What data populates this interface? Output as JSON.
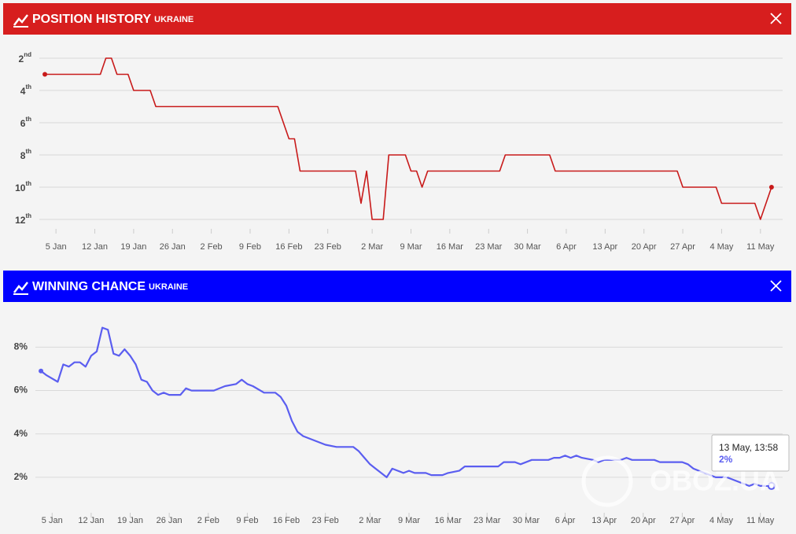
{
  "chart_data": [
    {
      "type": "line",
      "title": "POSITION HISTORY",
      "subtitle": "UKRAINE",
      "header_color": "#d71e1e",
      "color": "#c81a1a",
      "x": [
        "3 Jan",
        "13 Jan",
        "14 Jan",
        "15 Jan",
        "16 Jan",
        "18 Jan",
        "19 Jan",
        "22 Jan",
        "23 Jan",
        "14 Feb",
        "16 Feb",
        "17 Feb",
        "18 Feb",
        "28 Feb",
        "29 Feb",
        "1 Mar",
        "2 Mar",
        "4 Mar",
        "5 Mar",
        "8 Mar",
        "9 Mar",
        "10 Mar",
        "11 Mar",
        "12 Mar",
        "25 Mar",
        "26 Mar",
        "3 Apr",
        "4 Apr",
        "26 Apr",
        "27 Apr",
        "3 May",
        "4 May",
        "10 May",
        "11 May",
        "13 May"
      ],
      "values": [
        3,
        3,
        2,
        2,
        3,
        3,
        4,
        4,
        5,
        5,
        7,
        7,
        9,
        9,
        11,
        9,
        12,
        12,
        8,
        8,
        9,
        9,
        10,
        9,
        9,
        8,
        8,
        9,
        9,
        10,
        10,
        11,
        11,
        12,
        10
      ],
      "xlim": [
        "2 Jan",
        "15 May"
      ],
      "xticks": [
        "5 Jan",
        "12 Jan",
        "19 Jan",
        "26 Jan",
        "2 Feb",
        "9 Feb",
        "16 Feb",
        "23 Feb",
        "2 Mar",
        "9 Mar",
        "16 Mar",
        "23 Mar",
        "30 Mar",
        "6 Apr",
        "13 Apr",
        "20 Apr",
        "27 Apr",
        "4 May",
        "11 May"
      ],
      "ylim": [
        12,
        2
      ],
      "yticks": [
        {
          "value": 2,
          "label": "2nd"
        },
        {
          "value": 4,
          "label": "4th"
        },
        {
          "value": 6,
          "label": "6th"
        },
        {
          "value": 8,
          "label": "8th"
        },
        {
          "value": 10,
          "label": "10th"
        },
        {
          "value": 12,
          "label": "12th"
        }
      ],
      "grid": true
    },
    {
      "type": "line",
      "title": "WINNING CHANCE",
      "subtitle": "UKRAINE",
      "header_color": "#0000ff",
      "color": "#5b5ef0",
      "x": [
        "3 Jan",
        "4 Jan",
        "6 Jan",
        "7 Jan",
        "8 Jan",
        "9 Jan",
        "10 Jan",
        "11 Jan",
        "12 Jan",
        "13 Jan",
        "14 Jan",
        "15 Jan",
        "16 Jan",
        "17 Jan",
        "18 Jan",
        "19 Jan",
        "20 Jan",
        "21 Jan",
        "22 Jan",
        "23 Jan",
        "24 Jan",
        "25 Jan",
        "26 Jan",
        "28 Jan",
        "29 Jan",
        "30 Jan",
        "3 Feb",
        "5 Feb",
        "7 Feb",
        "8 Feb",
        "9 Feb",
        "10 Feb",
        "12 Feb",
        "14 Feb",
        "15 Feb",
        "16 Feb",
        "17 Feb",
        "18 Feb",
        "19 Feb",
        "21 Feb",
        "23 Feb",
        "25 Feb",
        "28 Feb",
        "29 Feb",
        "1 Mar",
        "2 Mar",
        "3 Mar",
        "4 Mar",
        "5 Mar",
        "6 Mar",
        "7 Mar",
        "8 Mar",
        "9 Mar",
        "10 Mar",
        "12 Mar",
        "13 Mar",
        "15 Mar",
        "16 Mar",
        "18 Mar",
        "19 Mar",
        "25 Mar",
        "26 Mar",
        "28 Mar",
        "29 Mar",
        "31 Mar",
        "3 Apr",
        "4 Apr",
        "5 Apr",
        "6 Apr",
        "7 Apr",
        "8 Apr",
        "9 Apr",
        "11 Apr",
        "12 Apr",
        "13 Apr",
        "16 Apr",
        "17 Apr",
        "18 Apr",
        "22 Apr",
        "23 Apr",
        "27 Apr",
        "28 Apr",
        "29 Apr",
        "1 May",
        "3 May",
        "5 May",
        "7 May",
        "9 May",
        "10 May",
        "11 May",
        "13 May"
      ],
      "values": [
        6.9,
        6.7,
        6.4,
        7.2,
        7.1,
        7.3,
        7.3,
        7.1,
        7.6,
        7.8,
        8.9,
        8.8,
        7.7,
        7.6,
        7.9,
        7.6,
        7.2,
        6.5,
        6.4,
        6.0,
        5.8,
        5.9,
        5.8,
        5.8,
        6.1,
        6.0,
        6.0,
        6.2,
        6.3,
        6.5,
        6.3,
        6.2,
        5.9,
        5.9,
        5.7,
        5.3,
        4.6,
        4.1,
        3.9,
        3.7,
        3.5,
        3.4,
        3.4,
        3.2,
        2.9,
        2.6,
        2.4,
        2.2,
        2.0,
        2.4,
        2.3,
        2.2,
        2.3,
        2.2,
        2.2,
        2.1,
        2.1,
        2.2,
        2.3,
        2.5,
        2.5,
        2.7,
        2.7,
        2.6,
        2.8,
        2.8,
        2.9,
        2.9,
        3.0,
        2.9,
        3.0,
        2.9,
        2.8,
        2.7,
        2.8,
        2.8,
        2.9,
        2.8,
        2.8,
        2.7,
        2.7,
        2.6,
        2.4,
        2.2,
        2.0,
        2.0,
        1.8,
        1.6,
        1.7,
        1.6,
        1.6
      ],
      "xlim": [
        "2 Jan",
        "15 May"
      ],
      "xticks": [
        "5 Jan",
        "12 Jan",
        "19 Jan",
        "26 Jan",
        "2 Feb",
        "9 Feb",
        "16 Feb",
        "23 Feb",
        "2 Mar",
        "9 Mar",
        "16 Mar",
        "23 Mar",
        "30 Mar",
        "6 Apr",
        "13 Apr",
        "20 Apr",
        "27 Apr",
        "4 May",
        "11 May"
      ],
      "ylim": [
        0.8,
        9.5
      ],
      "yticks": [
        {
          "value": 2,
          "label": "2%"
        },
        {
          "value": 4,
          "label": "4%"
        },
        {
          "value": 6,
          "label": "6%"
        },
        {
          "value": 8,
          "label": "8%"
        }
      ],
      "grid": true,
      "tooltip": {
        "title": "13 May, 13:58",
        "value": "2%"
      }
    }
  ],
  "watermark": "OBOZ.UA"
}
